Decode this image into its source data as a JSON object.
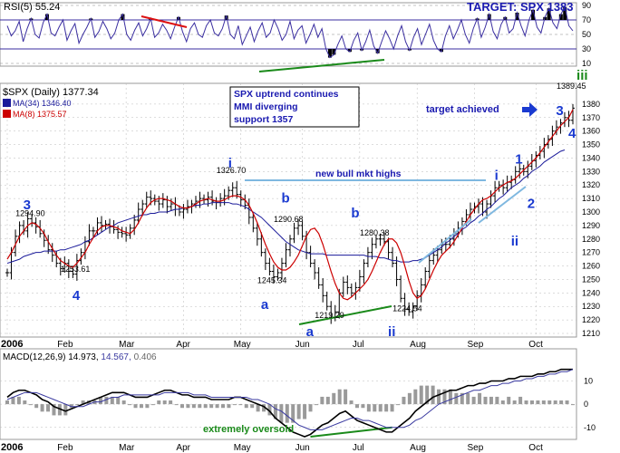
{
  "chart_data": [
    {
      "type": "line",
      "panel": "rsi",
      "label": "RSI(5) 55.24",
      "target_label": "TARGET: SPX 1383",
      "ylim": [
        10,
        90
      ],
      "yticks": [
        10,
        30,
        50,
        70,
        90
      ],
      "overbought": 70,
      "oversold": 30,
      "series": [
        {
          "values": [
            62,
            48,
            55,
            68,
            40,
            58,
            72,
            50,
            45,
            66,
            78,
            52,
            48,
            60,
            70,
            42,
            55,
            65,
            38,
            50,
            60,
            72,
            46,
            54,
            68,
            58,
            44,
            52,
            70,
            78,
            50,
            42,
            56,
            66,
            48,
            58,
            72,
            46,
            52,
            64,
            56,
            44,
            60,
            74,
            54,
            40,
            58,
            66,
            50,
            46,
            62,
            70,
            52,
            48,
            58,
            76,
            50,
            44,
            62,
            36,
            48,
            60,
            40,
            55,
            66,
            46,
            52,
            70,
            58,
            42,
            50,
            68,
            44,
            56,
            62,
            38,
            50,
            64,
            46,
            58,
            30,
            18,
            22,
            36,
            48,
            30,
            26,
            42,
            52,
            28,
            40,
            56,
            34,
            24,
            40,
            55,
            44,
            30,
            48,
            62,
            40,
            28,
            46,
            58,
            36,
            50,
            64,
            42,
            30,
            26,
            48,
            62,
            44,
            56,
            70,
            50,
            38,
            58,
            72,
            46,
            60,
            78,
            54,
            44,
            64,
            74,
            52,
            58,
            80,
            62,
            48,
            70,
            84,
            60,
            52,
            74,
            86,
            66,
            58,
            78,
            88,
            62,
            55
          ]
        }
      ]
    },
    {
      "type": "line",
      "panel": "price",
      "title": "$SPX (Daily) 1377.34",
      "ylim": [
        1210,
        1390
      ],
      "yticks": [
        1210,
        1220,
        1230,
        1240,
        1250,
        1260,
        1270,
        1280,
        1290,
        1300,
        1310,
        1320,
        1330,
        1340,
        1350,
        1360,
        1370,
        1380
      ],
      "x_month_labels": [
        "2006",
        "Feb",
        "Mar",
        "Apr",
        "May",
        "Jun",
        "Jul",
        "Aug",
        "Sep",
        "Oct"
      ],
      "series": [
        {
          "name": "MA(34) 1346.40",
          "color": "#1a1a9a",
          "values": [
            1262,
            1263,
            1264,
            1265,
            1267,
            1268,
            1269,
            1270,
            1270,
            1271,
            1271,
            1271,
            1271,
            1272,
            1272,
            1273,
            1274,
            1275,
            1276,
            1278,
            1279,
            1281,
            1283,
            1285,
            1287,
            1289,
            1290,
            1292,
            1293,
            1294,
            1295,
            1296,
            1297,
            1298,
            1298,
            1299,
            1299,
            1300,
            1300,
            1300,
            1301,
            1302,
            1302,
            1303,
            1303,
            1304,
            1305,
            1305,
            1306,
            1306,
            1307,
            1307,
            1307,
            1307,
            1307,
            1306,
            1306,
            1305,
            1304,
            1302,
            1300,
            1298,
            1296,
            1293,
            1290,
            1287,
            1284,
            1281,
            1278,
            1276,
            1274,
            1272,
            1271,
            1270,
            1269,
            1269,
            1269,
            1269,
            1268,
            1268,
            1268,
            1268,
            1268,
            1268,
            1268,
            1268,
            1268,
            1268,
            1267,
            1267,
            1267,
            1266,
            1266,
            1265,
            1264,
            1264,
            1263,
            1263,
            1263,
            1264,
            1264,
            1265,
            1266,
            1268,
            1270,
            1272,
            1274,
            1277,
            1279,
            1282,
            1284,
            1287,
            1289,
            1292,
            1294,
            1297,
            1299,
            1302,
            1304,
            1307,
            1310,
            1312,
            1315,
            1318,
            1320,
            1322,
            1325,
            1327,
            1330,
            1332,
            1334,
            1337,
            1339,
            1341,
            1343,
            1345,
            1346
          ]
        },
        {
          "name": "MA(8) 1375.57",
          "color": "#cc0000",
          "values": [
            1265,
            1270,
            1276,
            1282,
            1286,
            1290,
            1292,
            1291,
            1288,
            1284,
            1278,
            1273,
            1268,
            1264,
            1262,
            1260,
            1259,
            1262,
            1266,
            1270,
            1276,
            1281,
            1286,
            1289,
            1290,
            1290,
            1289,
            1288,
            1286,
            1285,
            1284,
            1287,
            1292,
            1298,
            1303,
            1307,
            1309,
            1310,
            1310,
            1309,
            1308,
            1306,
            1304,
            1303,
            1303,
            1304,
            1306,
            1308,
            1309,
            1310,
            1309,
            1308,
            1308,
            1309,
            1311,
            1312,
            1312,
            1311,
            1309,
            1305,
            1299,
            1292,
            1284,
            1276,
            1269,
            1263,
            1259,
            1257,
            1257,
            1259,
            1263,
            1268,
            1275,
            1282,
            1287,
            1288,
            1284,
            1276,
            1266,
            1256,
            1247,
            1240,
            1236,
            1235,
            1237,
            1240,
            1243,
            1246,
            1250,
            1256,
            1263,
            1270,
            1276,
            1280,
            1280,
            1277,
            1270,
            1260,
            1249,
            1240,
            1236,
            1238,
            1243,
            1250,
            1257,
            1263,
            1268,
            1271,
            1274,
            1278,
            1283,
            1288,
            1293,
            1298,
            1302,
            1306,
            1309,
            1310,
            1312,
            1315,
            1318,
            1320,
            1322,
            1323,
            1325,
            1328,
            1331,
            1334,
            1337,
            1340,
            1344,
            1348,
            1352,
            1356,
            1360,
            1364,
            1367,
            1370,
            1376
          ]
        },
        {
          "name": "close",
          "color": "#000000",
          "values": [
            1255,
            1270,
            1282,
            1290,
            1286,
            1295,
            1292,
            1289,
            1284,
            1279,
            1272,
            1268,
            1262,
            1258,
            1262,
            1256,
            1254,
            1264,
            1270,
            1278,
            1286,
            1286,
            1292,
            1290,
            1291,
            1289,
            1287,
            1285,
            1284,
            1283,
            1288,
            1294,
            1302,
            1306,
            1311,
            1310,
            1308,
            1306,
            1309,
            1304,
            1306,
            1302,
            1300,
            1302,
            1304,
            1306,
            1308,
            1310,
            1309,
            1311,
            1308,
            1307,
            1310,
            1312,
            1316,
            1318,
            1313,
            1309,
            1305,
            1296,
            1288,
            1280,
            1270,
            1262,
            1256,
            1252,
            1255,
            1262,
            1272,
            1280,
            1288,
            1290,
            1282,
            1270,
            1262,
            1255,
            1246,
            1238,
            1230,
            1222,
            1226,
            1240,
            1248,
            1244,
            1240,
            1244,
            1252,
            1262,
            1270,
            1276,
            1280,
            1280,
            1278,
            1270,
            1262,
            1250,
            1236,
            1228,
            1226,
            1230,
            1238,
            1246,
            1256,
            1264,
            1268,
            1272,
            1276,
            1276,
            1280,
            1284,
            1288,
            1293,
            1298,
            1302,
            1304,
            1306,
            1300,
            1306,
            1312,
            1318,
            1320,
            1318,
            1322,
            1324,
            1330,
            1332,
            1330,
            1334,
            1338,
            1342,
            1345,
            1350,
            1354,
            1360,
            1363,
            1366,
            1370,
            1368,
            1377
          ]
        }
      ],
      "annotations": [
        {
          "text": "1294.90",
          "x": 6,
          "y": 1294.9,
          "kind": "price"
        },
        {
          "text": "1253.61",
          "x": 17,
          "y": 1253.61,
          "kind": "price"
        },
        {
          "text": "1326.70",
          "x": 55,
          "y": 1326.7,
          "kind": "price"
        },
        {
          "text": "1290.68",
          "x": 69,
          "y": 1290.68,
          "kind": "price"
        },
        {
          "text": "1245.34",
          "x": 65,
          "y": 1245.34,
          "kind": "price"
        },
        {
          "text": "1219.29",
          "x": 79,
          "y": 1219.29,
          "kind": "price"
        },
        {
          "text": "1280.38",
          "x": 90,
          "y": 1280.38,
          "kind": "price"
        },
        {
          "text": "1224.54",
          "x": 98,
          "y": 1224.54,
          "kind": "price"
        },
        {
          "text": "1389.45",
          "x": 138,
          "y": 1389.45,
          "kind": "price"
        },
        {
          "text": "3",
          "x": 5,
          "y": 1302,
          "kind": "wave"
        },
        {
          "text": "4",
          "x": 17,
          "y": 1235,
          "kind": "wave"
        },
        {
          "text": "i",
          "x": 55,
          "y": 1333,
          "kind": "wave"
        },
        {
          "text": "b",
          "x": 68,
          "y": 1307,
          "kind": "wave"
        },
        {
          "text": "a",
          "x": 63,
          "y": 1228,
          "kind": "wave"
        },
        {
          "text": "a",
          "x": 74,
          "y": 1208,
          "kind": "wave"
        },
        {
          "text": "b",
          "x": 85,
          "y": 1296,
          "kind": "wave"
        },
        {
          "text": "ii",
          "x": 94,
          "y": 1208,
          "kind": "wave"
        },
        {
          "text": "1",
          "x": 125,
          "y": 1336,
          "kind": "wave"
        },
        {
          "text": "i",
          "x": 120,
          "y": 1324,
          "kind": "wave"
        },
        {
          "text": "2",
          "x": 128,
          "y": 1303,
          "kind": "wave"
        },
        {
          "text": "ii",
          "x": 124,
          "y": 1275,
          "kind": "wave"
        },
        {
          "text": "3",
          "x": 135,
          "y": 1372,
          "kind": "wave"
        },
        {
          "text": "4",
          "x": 138,
          "y": 1355,
          "kind": "wave"
        },
        {
          "text": "iii",
          "x": 140,
          "y": 1398,
          "kind": "wave"
        },
        {
          "text": "new bull mkt highs",
          "kind": "note"
        },
        {
          "text": "target achieved",
          "kind": "note"
        }
      ],
      "textbox": [
        "SPX uptrend continues",
        "MMI diverging",
        "support 1357"
      ]
    },
    {
      "type": "bar",
      "panel": "macd",
      "label": "MACD(12,26,9) 14.973, 14.567, 0.406",
      "label_parts": [
        "MACD(12,26,9)",
        "14.973,",
        "14.567,",
        "0.406"
      ],
      "ylim": [
        -14,
        18
      ],
      "yticks": [
        -10,
        0,
        10
      ],
      "note": "extremely oversold",
      "series": [
        {
          "name": "MACD",
          "values": [
            3,
            5,
            6,
            6,
            5,
            4,
            2,
            1,
            -1,
            -2,
            -3,
            -2,
            -1,
            0,
            1,
            2,
            3,
            4,
            5,
            5,
            5,
            4,
            3,
            3,
            3,
            4,
            5,
            6,
            6,
            5,
            4,
            4,
            3,
            3,
            3,
            2,
            2,
            2,
            2,
            3,
            3,
            2,
            1,
            0,
            -1,
            -3,
            -6,
            -8,
            -10,
            -12,
            -13,
            -14,
            -13,
            -11,
            -9,
            -8,
            -6,
            -4,
            -3,
            -5,
            -7,
            -8,
            -9,
            -10,
            -11,
            -12,
            -12,
            -10,
            -8,
            -6,
            -3,
            -1,
            1,
            3,
            4,
            5,
            6,
            6,
            7,
            8,
            8,
            9,
            9,
            10,
            10,
            10,
            11,
            11,
            12,
            12,
            12,
            13,
            13,
            14,
            14,
            15,
            15,
            15
          ]
        },
        {
          "name": "Signal",
          "values": [
            2,
            3,
            4,
            5,
            5,
            5,
            4,
            3,
            2,
            1,
            0,
            -1,
            -1,
            -1,
            0,
            1,
            1,
            2,
            3,
            3,
            4,
            4,
            4,
            4,
            4,
            4,
            4,
            5,
            5,
            5,
            5,
            5,
            4,
            4,
            4,
            3,
            3,
            3,
            3,
            3,
            3,
            3,
            2,
            2,
            1,
            0,
            -2,
            -3,
            -5,
            -7,
            -9,
            -10,
            -11,
            -11,
            -11,
            -10,
            -9,
            -8,
            -7,
            -6,
            -6,
            -7,
            -7,
            -8,
            -9,
            -10,
            -10,
            -10,
            -10,
            -9,
            -7,
            -6,
            -4,
            -2,
            0,
            1,
            2,
            3,
            4,
            5,
            6,
            6,
            7,
            8,
            8,
            9,
            9,
            10,
            10,
            11,
            11,
            12,
            12,
            13,
            13,
            14,
            14,
            15
          ]
        }
      ]
    }
  ]
}
